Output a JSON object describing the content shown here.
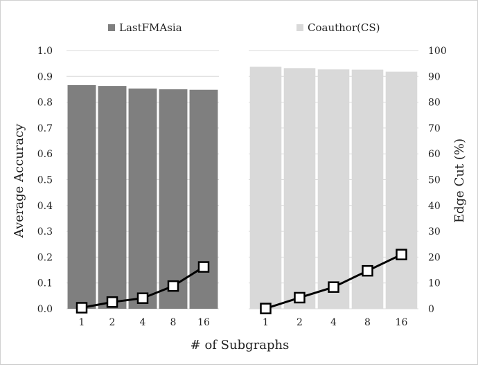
{
  "chart_data": {
    "type": "bar+line",
    "xlabel": "# of Subgraphs",
    "ylabel_left": "Average Accuracy",
    "ylabel_right": "Edge Cut (%)",
    "categories": [
      "1",
      "2",
      "4",
      "8",
      "16"
    ],
    "left_ylim": [
      0.0,
      1.0
    ],
    "left_ticks": [
      "0.0",
      "0.1",
      "0.2",
      "0.3",
      "0.4",
      "0.5",
      "0.6",
      "0.7",
      "0.8",
      "0.9",
      "1.0"
    ],
    "right_ylim": [
      0,
      100
    ],
    "right_ticks": [
      "0",
      "10",
      "20",
      "30",
      "40",
      "50",
      "60",
      "70",
      "80",
      "90",
      "100"
    ],
    "grid": "horizontal",
    "legend_position": "top",
    "panels": [
      {
        "name": "LastFMAsia",
        "bar_color": "#7f7f7f",
        "accuracy": [
          0.866,
          0.863,
          0.853,
          0.85,
          0.848
        ],
        "edge_cut": [
          0.4,
          2.6,
          4.1,
          8.8,
          16.2
        ]
      },
      {
        "name": "Coauthor(CS)",
        "bar_color": "#d9d9d9",
        "accuracy": [
          0.937,
          0.932,
          0.927,
          0.926,
          0.918
        ],
        "edge_cut": [
          0.1,
          4.3,
          8.4,
          14.7,
          21.0
        ]
      }
    ],
    "line_color": "#000000"
  }
}
